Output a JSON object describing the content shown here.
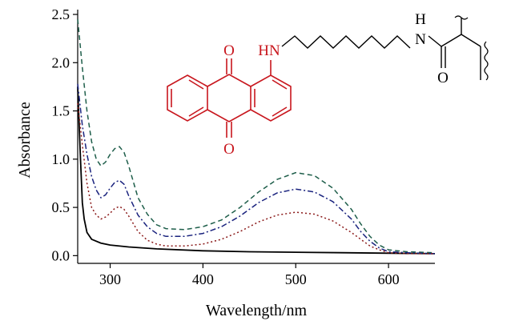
{
  "chart_data": {
    "type": "line",
    "title": "",
    "xlabel": "Wavelength/nm",
    "ylabel": "Absorbance",
    "xlim": [
      265,
      650
    ],
    "ylim": [
      -0.08,
      2.55
    ],
    "xticks": [
      300,
      400,
      500,
      600
    ],
    "yticks": [
      0.0,
      0.5,
      1.0,
      1.5,
      2.0,
      2.5
    ],
    "ytick_labels": [
      "0.0",
      "0.5",
      "1.0",
      "1.5",
      "2.0",
      "2.5"
    ],
    "grid": false,
    "legend": "none",
    "series": [
      {
        "style": "solid",
        "color": "#000000",
        "x": [
          265,
          268,
          270,
          272,
          275,
          280,
          290,
          300,
          320,
          350,
          400,
          450,
          500,
          550,
          600,
          650
        ],
        "y": [
          1.75,
          1.0,
          0.55,
          0.38,
          0.24,
          0.17,
          0.13,
          0.11,
          0.09,
          0.07,
          0.05,
          0.04,
          0.035,
          0.03,
          0.025,
          0.02
        ]
      },
      {
        "style": "dash",
        "color": "#1e5e4a",
        "x": [
          265,
          270,
          275,
          280,
          285,
          290,
          295,
          300,
          305,
          310,
          315,
          320,
          330,
          340,
          350,
          360,
          380,
          400,
          420,
          440,
          460,
          480,
          500,
          520,
          540,
          560,
          570,
          580,
          590,
          600,
          620,
          650
        ],
        "y": [
          2.45,
          1.95,
          1.5,
          1.18,
          1.0,
          0.93,
          0.97,
          1.05,
          1.11,
          1.13,
          1.07,
          0.93,
          0.6,
          0.43,
          0.32,
          0.28,
          0.27,
          0.3,
          0.37,
          0.5,
          0.66,
          0.79,
          0.86,
          0.83,
          0.7,
          0.48,
          0.33,
          0.2,
          0.11,
          0.06,
          0.04,
          0.03
        ]
      },
      {
        "style": "dash-dot",
        "color": "#1a237e",
        "x": [
          265,
          270,
          275,
          280,
          285,
          290,
          295,
          300,
          305,
          310,
          315,
          320,
          330,
          340,
          350,
          360,
          380,
          400,
          420,
          440,
          460,
          480,
          500,
          520,
          540,
          560,
          570,
          580,
          590,
          600,
          620,
          650
        ],
        "y": [
          1.78,
          1.35,
          1.05,
          0.82,
          0.68,
          0.6,
          0.63,
          0.7,
          0.76,
          0.78,
          0.74,
          0.62,
          0.42,
          0.3,
          0.23,
          0.2,
          0.2,
          0.23,
          0.3,
          0.41,
          0.55,
          0.65,
          0.69,
          0.66,
          0.56,
          0.38,
          0.25,
          0.15,
          0.08,
          0.04,
          0.03,
          0.02
        ]
      },
      {
        "style": "dot",
        "color": "#8b1a1a",
        "x": [
          265,
          270,
          275,
          280,
          285,
          290,
          295,
          300,
          305,
          310,
          315,
          320,
          330,
          340,
          350,
          360,
          380,
          400,
          420,
          440,
          460,
          480,
          500,
          520,
          540,
          560,
          570,
          580,
          590,
          600,
          620,
          650
        ],
        "y": [
          1.58,
          1.15,
          0.75,
          0.5,
          0.42,
          0.38,
          0.4,
          0.44,
          0.49,
          0.51,
          0.48,
          0.41,
          0.25,
          0.16,
          0.12,
          0.1,
          0.1,
          0.12,
          0.17,
          0.25,
          0.35,
          0.42,
          0.45,
          0.43,
          0.36,
          0.24,
          0.17,
          0.1,
          0.06,
          0.03,
          0.02,
          0.02
        ]
      }
    ]
  },
  "structure": {
    "nh_left": "HN",
    "o_top": "O",
    "o_bottom": "O",
    "h_right": "H",
    "n_right": "N",
    "o_amide": "O"
  }
}
